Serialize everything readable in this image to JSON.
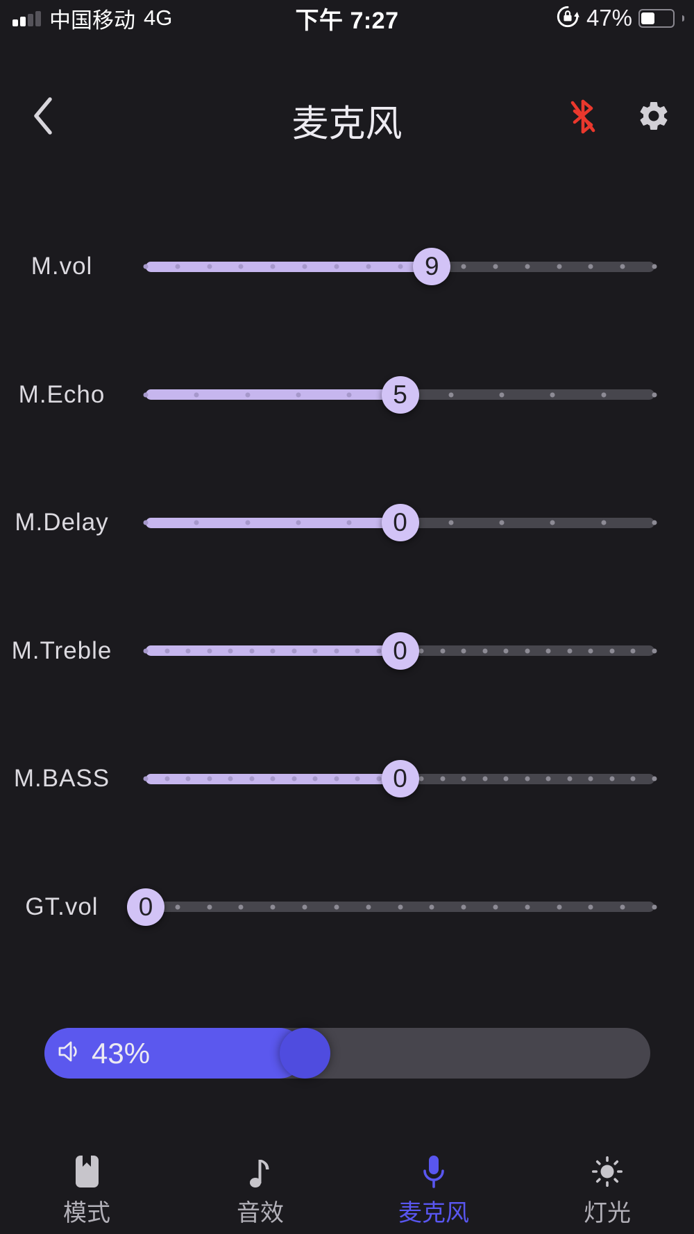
{
  "colors": {
    "background": "#1b1a1e",
    "slider_fill_purple": "#c6b6ee",
    "slider_thumb_purple": "#d2c3f6",
    "track_gray": "#47464d",
    "volume_blue": "#5b58ee",
    "active_tab_blue": "#5956f0",
    "bluetooth_red": "#ea382d"
  },
  "status_bar": {
    "carrier": "中国移动",
    "network": "4G",
    "time": "下午 7:27",
    "battery_percent": "47%",
    "battery_level": 47,
    "signal_bars_filled": 2,
    "signal_bars_total": 4
  },
  "header": {
    "title": "麦克风"
  },
  "sliders": [
    {
      "label": "M.vol",
      "value": "9",
      "percent": 56.25,
      "ticks": 17
    },
    {
      "label": "M.Echo",
      "value": "5",
      "percent": 50,
      "ticks": 11
    },
    {
      "label": "M.Delay",
      "value": "0",
      "percent": 50,
      "ticks": 11
    },
    {
      "label": "M.Treble",
      "value": "0",
      "percent": 50,
      "ticks": 25
    },
    {
      "label": "M.BASS",
      "value": "0",
      "percent": 50,
      "ticks": 25
    },
    {
      "label": "GT.vol",
      "value": "0",
      "percent": 0,
      "ticks": 17
    }
  ],
  "volume_bar": {
    "label": "43%",
    "percent": 43
  },
  "tab_bar": {
    "items": [
      {
        "label": "模式",
        "icon": "mode-book-icon",
        "active": false
      },
      {
        "label": "音效",
        "icon": "music-note-icon",
        "active": false
      },
      {
        "label": "麦克风",
        "icon": "microphone-icon",
        "active": true
      },
      {
        "label": "灯光",
        "icon": "light-icon",
        "active": false
      }
    ]
  }
}
